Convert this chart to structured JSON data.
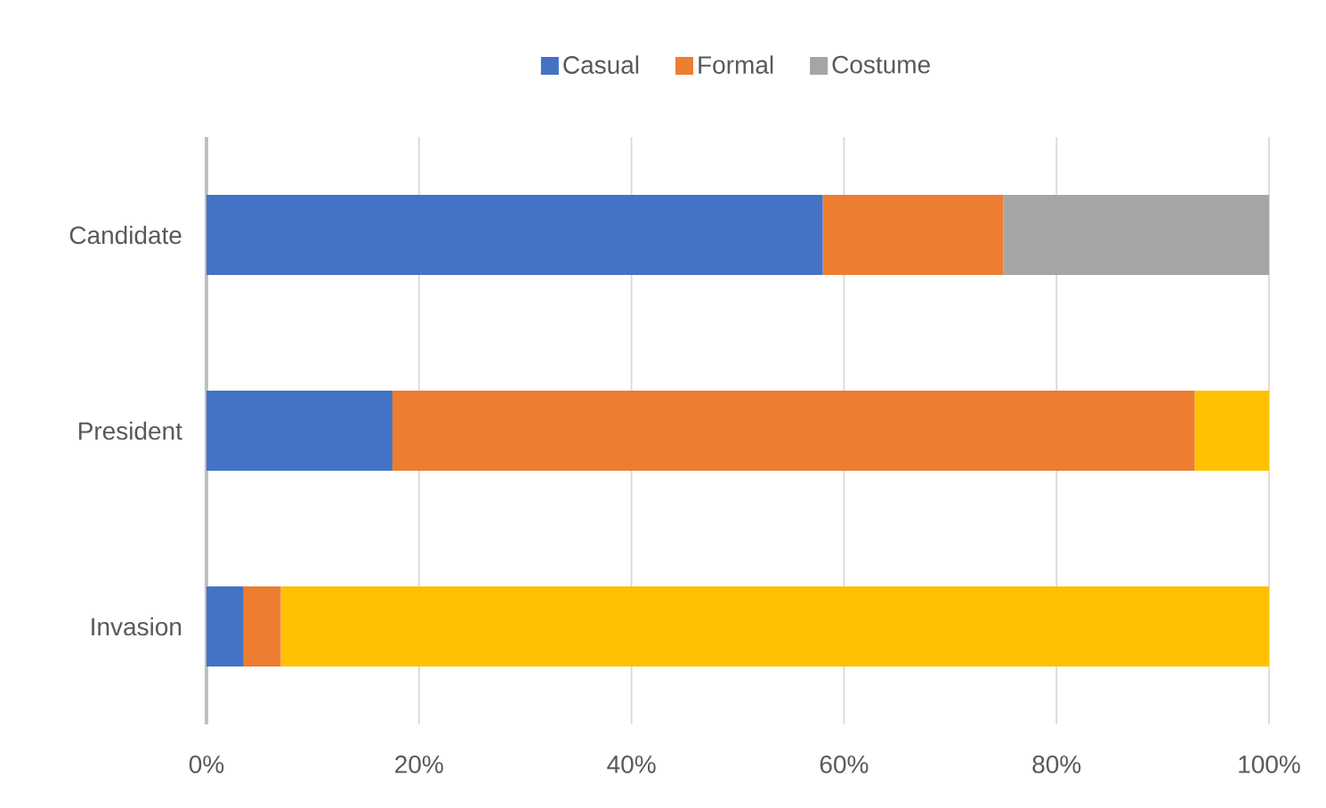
{
  "chart_data": {
    "type": "bar",
    "orientation": "horizontal",
    "stacked": true,
    "categories": [
      "Candidate",
      "President",
      "Invasion"
    ],
    "series": [
      {
        "name": "Casual",
        "color": "#4472c4",
        "values": [
          58,
          17.5,
          3.5
        ]
      },
      {
        "name": "Formal",
        "color": "#ed7d31",
        "values": [
          17,
          75.5,
          3.5
        ]
      },
      {
        "name": "Costume",
        "color": "#a5a5a5",
        "values": [
          25,
          0,
          0
        ]
      },
      {
        "color": "#ffc000",
        "values": [
          0,
          7,
          93
        ]
      }
    ],
    "xlim": [
      0,
      100
    ],
    "xticks": [
      {
        "value": 0,
        "label": "0%"
      },
      {
        "value": 20,
        "label": "20%"
      },
      {
        "value": 40,
        "label": "40%"
      },
      {
        "value": 60,
        "label": "60%"
      },
      {
        "value": 80,
        "label": "80%"
      },
      {
        "value": 100,
        "label": "100%"
      }
    ],
    "grid": "x",
    "legend": "top"
  }
}
